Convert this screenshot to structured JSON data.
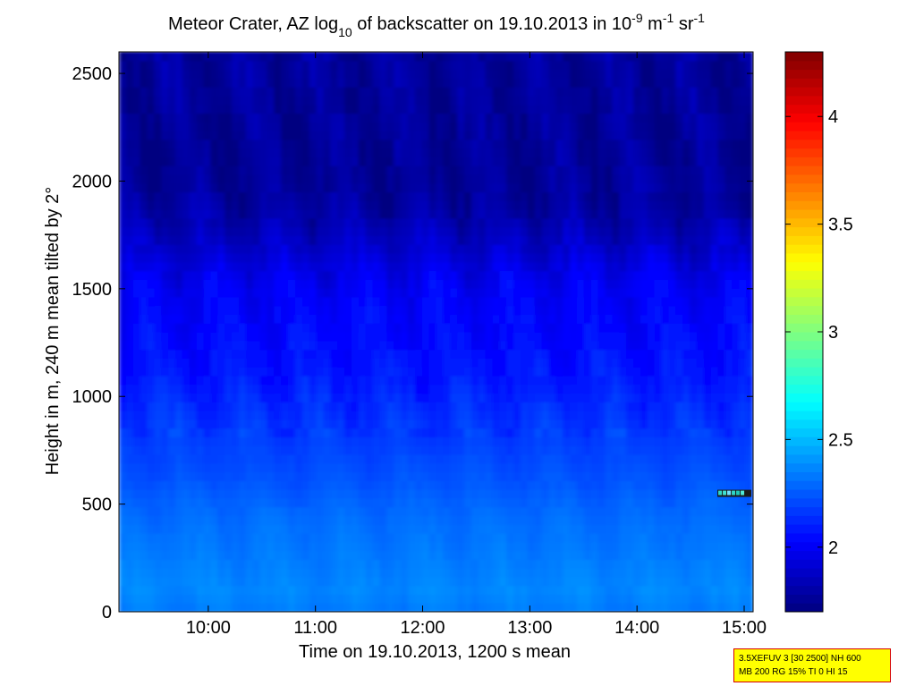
{
  "chart_data": {
    "type": "heatmap",
    "title_parts": {
      "pre": "Meteor Crater, AZ log",
      "sub": "10",
      "mid": " of backscatter on 19.10.2013 in 10",
      "sup1": "-9",
      "mid2": " m",
      "sup2": "-1",
      "mid3": " sr",
      "sup3": "-1"
    },
    "xlabel": "Time on 19.10.2013, 1200 s mean",
    "ylabel": "Height in m, 240 m mean tilted by 2°",
    "xlim": [
      "09:10",
      "15:05"
    ],
    "ylim": [
      0,
      2600
    ],
    "x_ticks": [
      "10:00",
      "11:00",
      "12:00",
      "13:00",
      "14:00",
      "15:00"
    ],
    "y_ticks": [
      "0",
      "500",
      "1000",
      "1500",
      "2000",
      "2500"
    ],
    "colorbar": {
      "range": [
        1.7,
        4.3
      ],
      "ticks": [
        "2",
        "2.5",
        "3",
        "3.5",
        "4"
      ],
      "colormap": "jet"
    },
    "profile_heights_m": [
      0,
      100,
      200,
      300,
      400,
      500,
      600,
      700,
      800,
      900,
      1000,
      1100,
      1200,
      1300,
      1400,
      1500,
      1600,
      1700,
      1800,
      1900,
      2000,
      2200,
      2400,
      2600
    ],
    "profile_values": [
      2.34,
      2.37,
      2.35,
      2.33,
      2.31,
      2.28,
      2.24,
      2.21,
      2.18,
      2.15,
      2.12,
      2.08,
      2.06,
      2.04,
      2.02,
      2.0,
      1.95,
      1.88,
      1.82,
      1.78,
      1.76,
      1.76,
      1.77,
      1.77
    ]
  },
  "info_box": {
    "line1": "3.5XEFUV 3 [30 2500] NH 600",
    "line2": "MB 200 RG 15% TI 0 HI 15"
  }
}
